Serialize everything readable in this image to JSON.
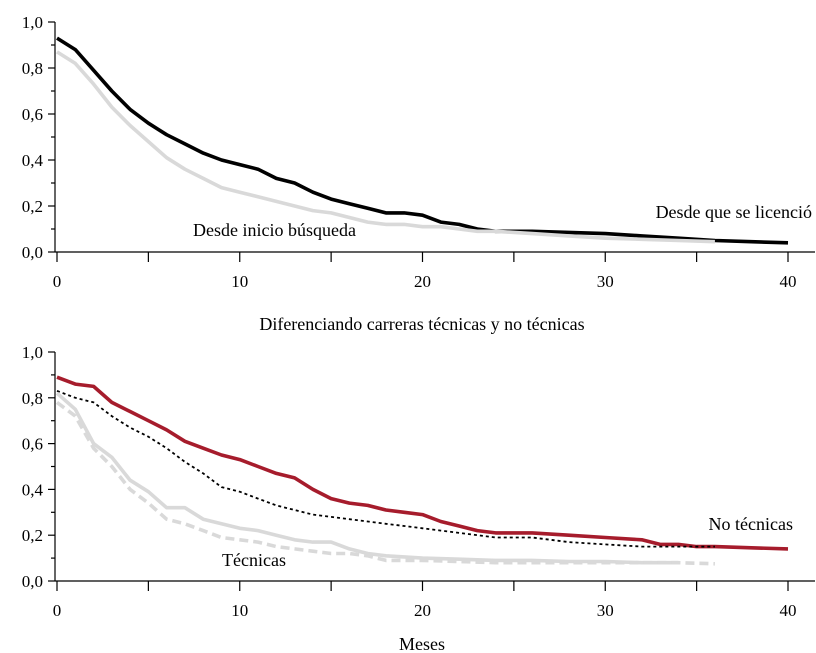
{
  "chart_data": [
    {
      "type": "line",
      "title": "",
      "xlabel": "",
      "ylabel": "",
      "xlim": [
        -4,
        40
      ],
      "ylim": [
        0,
        1.0
      ],
      "xticks": [
        "0",
        "10",
        "20",
        "30",
        "40"
      ],
      "yticks": [
        "0,0",
        "0,2",
        "0,4",
        "0,6",
        "0,8",
        "1,0"
      ],
      "grid": false,
      "annotations": [
        "Desde que se licenció",
        "Desde inicio búsqueda"
      ],
      "series": [
        {
          "name": "Desde que se licenció",
          "color": "#000000",
          "dash": "solid",
          "x": [
            0,
            1,
            2,
            3,
            4,
            5,
            6,
            7,
            8,
            9,
            10,
            11,
            12,
            13,
            14,
            15,
            16,
            17,
            18,
            19,
            20,
            21,
            22,
            23,
            24,
            26,
            28,
            30,
            32,
            34,
            36,
            38,
            40
          ],
          "y": [
            0.93,
            0.88,
            0.79,
            0.7,
            0.62,
            0.56,
            0.51,
            0.47,
            0.43,
            0.4,
            0.38,
            0.36,
            0.32,
            0.3,
            0.26,
            0.23,
            0.21,
            0.19,
            0.17,
            0.17,
            0.16,
            0.13,
            0.12,
            0.1,
            0.09,
            0.09,
            0.085,
            0.08,
            0.07,
            0.06,
            0.05,
            0.045,
            0.04
          ]
        },
        {
          "name": "Desde inicio búsqueda",
          "color": "#d9d9d9",
          "dash": "solid",
          "x": [
            0,
            1,
            2,
            3,
            4,
            5,
            6,
            7,
            8,
            9,
            10,
            11,
            12,
            13,
            14,
            15,
            16,
            17,
            18,
            19,
            20,
            21,
            22,
            23,
            24,
            26,
            28,
            30,
            32,
            34,
            36
          ],
          "y": [
            0.87,
            0.82,
            0.73,
            0.63,
            0.55,
            0.48,
            0.41,
            0.36,
            0.32,
            0.28,
            0.26,
            0.24,
            0.22,
            0.2,
            0.18,
            0.17,
            0.15,
            0.13,
            0.12,
            0.12,
            0.11,
            0.11,
            0.1,
            0.09,
            0.09,
            0.08,
            0.07,
            0.06,
            0.055,
            0.05,
            0.045
          ]
        }
      ]
    },
    {
      "type": "line",
      "title": "Diferenciando carreras técnicas y no técnicas",
      "xlabel": "Meses",
      "ylabel": "",
      "xlim": [
        -4,
        40
      ],
      "ylim": [
        0,
        1.0
      ],
      "xticks": [
        "0",
        "10",
        "20",
        "30",
        "40"
      ],
      "yticks": [
        "0,0",
        "0,2",
        "0,4",
        "0,6",
        "0,8",
        "1,0"
      ],
      "grid": false,
      "annotations": [
        "No técnicas",
        "Técnicas"
      ],
      "series": [
        {
          "color": "#a61c2c",
          "dash": "solid",
          "x": [
            0,
            1,
            2,
            3,
            4,
            5,
            6,
            7,
            8,
            9,
            10,
            11,
            12,
            13,
            14,
            15,
            16,
            17,
            18,
            19,
            20,
            21,
            22,
            23,
            24,
            26,
            28,
            30,
            32,
            33,
            34,
            35,
            36,
            38,
            40
          ],
          "y": [
            0.89,
            0.86,
            0.85,
            0.78,
            0.74,
            0.7,
            0.66,
            0.61,
            0.58,
            0.55,
            0.53,
            0.5,
            0.47,
            0.45,
            0.4,
            0.36,
            0.34,
            0.33,
            0.31,
            0.3,
            0.29,
            0.26,
            0.24,
            0.22,
            0.21,
            0.21,
            0.2,
            0.19,
            0.18,
            0.16,
            0.16,
            0.15,
            0.15,
            0.145,
            0.14
          ]
        },
        {
          "color": "#000000",
          "dash": "dotted",
          "x": [
            0,
            1,
            2,
            3,
            4,
            5,
            6,
            7,
            8,
            9,
            10,
            11,
            12,
            13,
            14,
            15,
            16,
            17,
            18,
            19,
            20,
            21,
            22,
            23,
            24,
            26,
            28,
            30,
            32,
            34,
            36
          ],
          "y": [
            0.83,
            0.8,
            0.78,
            0.72,
            0.67,
            0.63,
            0.58,
            0.52,
            0.47,
            0.41,
            0.39,
            0.36,
            0.33,
            0.31,
            0.29,
            0.28,
            0.27,
            0.26,
            0.25,
            0.24,
            0.23,
            0.22,
            0.21,
            0.2,
            0.19,
            0.19,
            0.17,
            0.16,
            0.15,
            0.15,
            0.15
          ]
        },
        {
          "color": "#d9d9d9",
          "dash": "solid",
          "x": [
            0,
            1,
            2,
            3,
            4,
            5,
            6,
            7,
            8,
            9,
            10,
            11,
            12,
            13,
            14,
            15,
            16,
            17,
            18,
            20,
            22,
            24,
            26,
            28,
            30,
            32,
            34
          ],
          "y": [
            0.82,
            0.75,
            0.6,
            0.54,
            0.44,
            0.39,
            0.32,
            0.32,
            0.27,
            0.25,
            0.23,
            0.22,
            0.2,
            0.18,
            0.17,
            0.17,
            0.14,
            0.12,
            0.11,
            0.1,
            0.095,
            0.09,
            0.09,
            0.085,
            0.085,
            0.08,
            0.08
          ]
        },
        {
          "color": "#d9d9d9",
          "dash": "dashed",
          "x": [
            0,
            1,
            2,
            3,
            4,
            5,
            6,
            7,
            8,
            9,
            10,
            11,
            12,
            13,
            14,
            15,
            16,
            17,
            18,
            20,
            22,
            24,
            26,
            28,
            30,
            32,
            34,
            36
          ],
          "y": [
            0.78,
            0.72,
            0.58,
            0.5,
            0.4,
            0.34,
            0.27,
            0.25,
            0.22,
            0.19,
            0.18,
            0.17,
            0.15,
            0.14,
            0.13,
            0.12,
            0.12,
            0.11,
            0.09,
            0.09,
            0.085,
            0.08,
            0.08,
            0.08,
            0.08,
            0.08,
            0.08,
            0.075
          ]
        }
      ]
    }
  ]
}
